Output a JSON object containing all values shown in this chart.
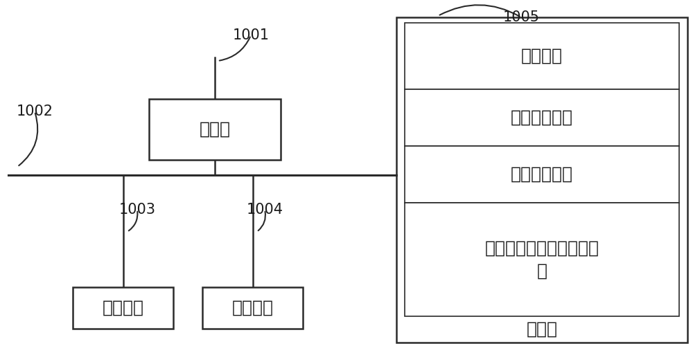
{
  "bg_color": "#ffffff",
  "line_color": "#2a2a2a",
  "box_fill": "#ffffff",
  "box_edge": "#2a2a2a",
  "inner_fill": "#ffffff",
  "processor_label": "处理器",
  "user_if_label": "用户接口",
  "net_if_label": "网络接口",
  "storage_label": "存储器",
  "os_label": "操作系统",
  "net_mod_label": "网络通信模块",
  "ui_mod_label": "用户接口模块",
  "prog_label": "末梢血采样装置的控制程\n序",
  "label_1001": "1001",
  "label_1002": "1002",
  "label_1003": "1003",
  "label_1004": "1004",
  "label_1005": "1005",
  "font_size_box": 18,
  "font_size_num": 15,
  "lw_outer": 1.8,
  "lw_inner": 1.2,
  "lw_line": 1.8,
  "lw_bus": 2.2
}
